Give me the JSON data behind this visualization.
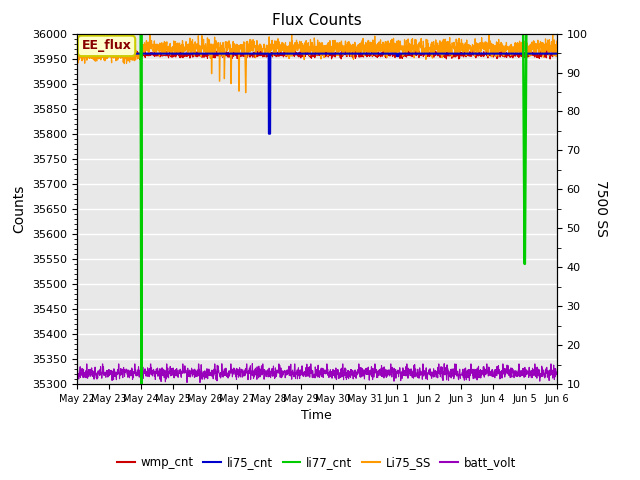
{
  "title": "Flux Counts",
  "ylabel_left": "Counts",
  "ylabel_right": "7500 SS",
  "xlabel": "Time",
  "ylim_left": [
    35300,
    36000
  ],
  "ylim_right": [
    10,
    100
  ],
  "annotation_text": "EE_flux",
  "annotation_bg": "#ffffcc",
  "annotation_border": "#cccc00",
  "annotation_text_color": "#880000",
  "bg_color": "#e8e8e8",
  "series": {
    "wmp_cnt": {
      "color": "#cc0000",
      "label": "wmp_cnt"
    },
    "li75_cnt": {
      "color": "#0000cc",
      "label": "li75_cnt"
    },
    "li77_cnt": {
      "color": "#00cc00",
      "label": "li77_cnt"
    },
    "Li75_SS": {
      "color": "#ff9900",
      "label": "Li75_SS"
    },
    "batt_volt": {
      "color": "#9900bb",
      "label": "batt_volt"
    }
  },
  "tick_labels": [
    "May 22",
    "May 23",
    "May 24",
    "May 25",
    "May 26",
    "May 27",
    "May 28",
    "May 29",
    "May 30",
    "May 31",
    "Jun 1",
    "Jun 2",
    "Jun 3",
    "Jun 4",
    "Jun 5",
    "Jun 6"
  ],
  "figsize": [
    6.4,
    4.8
  ],
  "dpi": 100
}
